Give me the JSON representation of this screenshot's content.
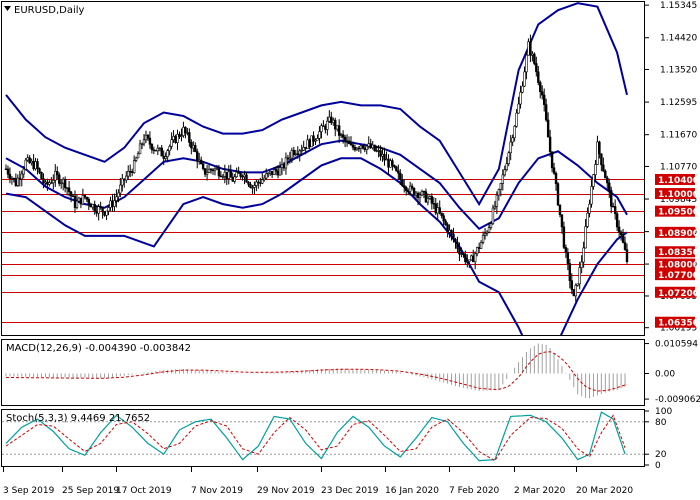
{
  "chart_data": [
    {
      "type": "candlestick",
      "title": "EURUSD,Daily",
      "price_axis": {
        "ylim": [
          1.05988,
          1.15434
        ],
        "tick_labels": [
          1.15345,
          1.1442,
          1.1352,
          1.12595,
          1.1167,
          1.1077,
          1.09845,
          1.0892,
          1.08,
          1.07095,
          1.06195
        ]
      },
      "horizontal_levels": [
        1.104,
        1.1,
        1.095,
        1.089,
        1.0835,
        1.08,
        1.077,
        1.072,
        1.0635
      ],
      "level_labels": [
        "1.10400",
        "1.10000",
        "1.09500",
        "1.08900",
        "1.08350",
        "1.08000",
        "1.07700",
        "1.07200",
        "1.06350"
      ],
      "x_tick_labels": [
        "3 Sep 2019",
        "25 Sep 2019",
        "17 Oct 2019",
        "7 Nov 2019",
        "29 Nov 2019",
        "23 Dec 2019",
        "16 Jan 2020",
        "7 Feb 2020",
        "2 Mar 2020",
        "20 Mar 2020"
      ],
      "close_path": [
        [
          0,
          1.1,
          1.107
        ],
        [
          5,
          1.103
        ],
        [
          10,
          1.109
        ],
        [
          15,
          1.108
        ],
        [
          20,
          1.102
        ],
        [
          25,
          1.105
        ],
        [
          30,
          1.103
        ],
        [
          35,
          1.097
        ],
        [
          40,
          1.099
        ],
        [
          45,
          1.096
        ],
        [
          50,
          1.095
        ],
        [
          55,
          1.098
        ],
        [
          60,
          1.104
        ],
        [
          65,
          1.108
        ],
        [
          70,
          1.116
        ],
        [
          75,
          1.113
        ],
        [
          80,
          1.111
        ],
        [
          85,
          1.115
        ],
        [
          90,
          1.118
        ],
        [
          95,
          1.113
        ],
        [
          100,
          1.106
        ],
        [
          105,
          1.107
        ],
        [
          110,
          1.106
        ],
        [
          115,
          1.104
        ],
        [
          120,
          1.106
        ],
        [
          125,
          1.102
        ],
        [
          130,
          1.104
        ],
        [
          135,
          1.106
        ],
        [
          140,
          1.107
        ],
        [
          145,
          1.112
        ],
        [
          150,
          1.113
        ],
        [
          155,
          1.115
        ],
        [
          160,
          1.118
        ],
        [
          165,
          1.121
        ],
        [
          170,
          1.116
        ],
        [
          175,
          1.113
        ],
        [
          180,
          1.114
        ],
        [
          185,
          1.113
        ],
        [
          190,
          1.111
        ],
        [
          195,
          1.108
        ],
        [
          200,
          1.104
        ],
        [
          205,
          1.101
        ],
        [
          210,
          1.1
        ],
        [
          215,
          1.098
        ],
        [
          220,
          1.094
        ],
        [
          225,
          1.089
        ],
        [
          230,
          1.084
        ],
        [
          235,
          1.08
        ],
        [
          240,
          1.085
        ],
        [
          245,
          1.091
        ],
        [
          250,
          1.1
        ],
        [
          255,
          1.112
        ],
        [
          260,
          1.125
        ],
        [
          265,
          1.142
        ],
        [
          268,
          1.137
        ],
        [
          272,
          1.128
        ],
        [
          276,
          1.112
        ],
        [
          280,
          1.098
        ],
        [
          284,
          1.082
        ],
        [
          288,
          1.07
        ],
        [
          292,
          1.081
        ],
        [
          296,
          1.098
        ],
        [
          300,
          1.1135
        ],
        [
          304,
          1.105
        ],
        [
          308,
          1.095
        ],
        [
          312,
          1.088
        ],
        [
          315,
          1.081
        ]
      ],
      "bollinger": {
        "upper": [
          [
            0,
            1.128
          ],
          [
            10,
            1.121
          ],
          [
            20,
            1.116
          ],
          [
            30,
            1.113
          ],
          [
            40,
            1.111
          ],
          [
            50,
            1.109
          ],
          [
            60,
            1.113
          ],
          [
            70,
            1.12
          ],
          [
            80,
            1.123
          ],
          [
            90,
            1.122
          ],
          [
            100,
            1.119
          ],
          [
            110,
            1.117
          ],
          [
            120,
            1.117
          ],
          [
            130,
            1.118
          ],
          [
            140,
            1.121
          ],
          [
            150,
            1.123
          ],
          [
            160,
            1.125
          ],
          [
            170,
            1.126
          ],
          [
            180,
            1.125
          ],
          [
            190,
            1.125
          ],
          [
            200,
            1.124
          ],
          [
            210,
            1.119
          ],
          [
            220,
            1.115
          ],
          [
            230,
            1.106
          ],
          [
            240,
            1.097
          ],
          [
            250,
            1.107
          ],
          [
            260,
            1.135
          ],
          [
            270,
            1.148
          ],
          [
            280,
            1.152
          ],
          [
            290,
            1.154
          ],
          [
            300,
            1.153
          ],
          [
            310,
            1.14
          ],
          [
            315,
            1.128
          ]
        ],
        "middle": [
          [
            0,
            1.11
          ],
          [
            10,
            1.107
          ],
          [
            20,
            1.102
          ],
          [
            30,
            1.099
          ],
          [
            40,
            1.097
          ],
          [
            50,
            1.096
          ],
          [
            60,
            1.099
          ],
          [
            70,
            1.104
          ],
          [
            80,
            1.109
          ],
          [
            90,
            1.11
          ],
          [
            100,
            1.109
          ],
          [
            110,
            1.107
          ],
          [
            120,
            1.106
          ],
          [
            130,
            1.106
          ],
          [
            140,
            1.108
          ],
          [
            150,
            1.111
          ],
          [
            160,
            1.114
          ],
          [
            170,
            1.115
          ],
          [
            180,
            1.114
          ],
          [
            190,
            1.113
          ],
          [
            200,
            1.111
          ],
          [
            210,
            1.107
          ],
          [
            220,
            1.103
          ],
          [
            230,
            1.096
          ],
          [
            240,
            1.09
          ],
          [
            250,
            1.093
          ],
          [
            260,
            1.103
          ],
          [
            270,
            1.11
          ],
          [
            280,
            1.112
          ],
          [
            290,
            1.108
          ],
          [
            300,
            1.103
          ],
          [
            310,
            1.099
          ],
          [
            315,
            1.094
          ]
        ],
        "lower": [
          [
            0,
            1.1
          ],
          [
            10,
            1.099
          ],
          [
            20,
            1.095
          ],
          [
            30,
            1.091
          ],
          [
            40,
            1.088
          ],
          [
            50,
            1.088
          ],
          [
            60,
            1.088
          ],
          [
            70,
            1.086
          ],
          [
            75,
            1.085
          ],
          [
            80,
            1.089
          ],
          [
            90,
            1.097
          ],
          [
            100,
            1.099
          ],
          [
            110,
            1.097
          ],
          [
            120,
            1.096
          ],
          [
            130,
            1.097
          ],
          [
            140,
            1.1
          ],
          [
            150,
            1.104
          ],
          [
            160,
            1.108
          ],
          [
            170,
            1.11
          ],
          [
            180,
            1.11
          ],
          [
            190,
            1.107
          ],
          [
            200,
            1.103
          ],
          [
            210,
            1.097
          ],
          [
            220,
            1.092
          ],
          [
            230,
            1.085
          ],
          [
            240,
            1.075
          ],
          [
            250,
            1.072
          ],
          [
            260,
            1.062
          ],
          [
            270,
            1.05
          ],
          [
            280,
            1.058
          ],
          [
            290,
            1.07
          ],
          [
            300,
            1.08
          ],
          [
            310,
            1.087
          ],
          [
            315,
            1.089
          ]
        ]
      }
    },
    {
      "type": "histogram",
      "title": "MACD(12,26,9) -0.004390 -0.003842",
      "ylim": [
        -0.0108,
        0.0115
      ],
      "tick_labels": [
        0.010594,
        0.0,
        -0.009062
      ],
      "histogram": [
        [
          0,
          -0.001
        ],
        [
          30,
          -0.0014
        ],
        [
          50,
          -0.0016
        ],
        [
          60,
          -0.0008
        ],
        [
          70,
          0.0003
        ],
        [
          80,
          0.0012
        ],
        [
          90,
          0.0016
        ],
        [
          100,
          0.0012
        ],
        [
          110,
          0.0005
        ],
        [
          120,
          0.0
        ],
        [
          130,
          0.0002
        ],
        [
          140,
          0.0005
        ],
        [
          150,
          0.001
        ],
        [
          160,
          0.0016
        ],
        [
          170,
          0.0018
        ],
        [
          180,
          0.0014
        ],
        [
          190,
          0.0012
        ],
        [
          200,
          0.0004
        ],
        [
          210,
          -0.001
        ],
        [
          220,
          -0.0028
        ],
        [
          230,
          -0.0048
        ],
        [
          240,
          -0.0062
        ],
        [
          250,
          -0.0058
        ],
        [
          255,
          -0.001
        ],
        [
          260,
          0.004
        ],
        [
          265,
          0.0085
        ],
        [
          270,
          0.0106
        ],
        [
          275,
          0.01
        ],
        [
          280,
          0.005
        ],
        [
          285,
          -0.001
        ],
        [
          290,
          -0.0074
        ],
        [
          295,
          -0.009
        ],
        [
          300,
          -0.0078
        ],
        [
          305,
          -0.0065
        ],
        [
          310,
          -0.0058
        ],
        [
          315,
          -0.0044
        ]
      ],
      "signal": [
        [
          0,
          -0.0014
        ],
        [
          30,
          -0.0016
        ],
        [
          50,
          -0.0017
        ],
        [
          60,
          -0.0013
        ],
        [
          70,
          -0.0005
        ],
        [
          80,
          0.0006
        ],
        [
          90,
          0.0012
        ],
        [
          100,
          0.0012
        ],
        [
          110,
          0.0009
        ],
        [
          120,
          0.0005
        ],
        [
          130,
          0.0004
        ],
        [
          140,
          0.0005
        ],
        [
          150,
          0.0008
        ],
        [
          160,
          0.0012
        ],
        [
          170,
          0.0015
        ],
        [
          180,
          0.0015
        ],
        [
          190,
          0.0013
        ],
        [
          200,
          0.0008
        ],
        [
          210,
          -0.0002
        ],
        [
          220,
          -0.0016
        ],
        [
          230,
          -0.0034
        ],
        [
          240,
          -0.0052
        ],
        [
          250,
          -0.0058
        ],
        [
          255,
          -0.0045
        ],
        [
          260,
          -0.0015
        ],
        [
          265,
          0.0035
        ],
        [
          270,
          0.0068
        ],
        [
          275,
          0.008
        ],
        [
          280,
          0.0065
        ],
        [
          285,
          0.003
        ],
        [
          290,
          -0.002
        ],
        [
          295,
          -0.0052
        ],
        [
          300,
          -0.0062
        ],
        [
          305,
          -0.006
        ],
        [
          310,
          -0.005
        ],
        [
          315,
          -0.0038
        ]
      ]
    },
    {
      "type": "line",
      "title": "Stoch(5,3,3) 9.4469 21.7652",
      "ylim": [
        0,
        100
      ],
      "tick_labels": [
        100,
        80,
        20,
        0
      ],
      "k_line": [
        [
          0,
          40
        ],
        [
          8,
          70
        ],
        [
          16,
          85
        ],
        [
          24,
          62
        ],
        [
          32,
          30
        ],
        [
          40,
          18
        ],
        [
          48,
          60
        ],
        [
          56,
          92
        ],
        [
          64,
          70
        ],
        [
          72,
          40
        ],
        [
          80,
          20
        ],
        [
          88,
          65
        ],
        [
          96,
          80
        ],
        [
          104,
          85
        ],
        [
          112,
          50
        ],
        [
          120,
          10
        ],
        [
          128,
          35
        ],
        [
          136,
          90
        ],
        [
          144,
          85
        ],
        [
          152,
          40
        ],
        [
          160,
          12
        ],
        [
          168,
          60
        ],
        [
          176,
          90
        ],
        [
          184,
          70
        ],
        [
          192,
          35
        ],
        [
          200,
          15
        ],
        [
          208,
          50
        ],
        [
          216,
          88
        ],
        [
          224,
          80
        ],
        [
          232,
          40
        ],
        [
          240,
          8
        ],
        [
          248,
          10
        ],
        [
          256,
          90
        ],
        [
          266,
          92
        ],
        [
          274,
          80
        ],
        [
          282,
          50
        ],
        [
          290,
          10
        ],
        [
          296,
          20
        ],
        [
          302,
          98
        ],
        [
          308,
          85
        ],
        [
          315,
          9.4469
        ]
      ],
      "d_line": [
        [
          0,
          35
        ],
        [
          8,
          55
        ],
        [
          16,
          75
        ],
        [
          24,
          72
        ],
        [
          32,
          48
        ],
        [
          40,
          25
        ],
        [
          48,
          40
        ],
        [
          56,
          75
        ],
        [
          64,
          80
        ],
        [
          72,
          58
        ],
        [
          80,
          30
        ],
        [
          88,
          40
        ],
        [
          96,
          72
        ],
        [
          104,
          82
        ],
        [
          112,
          72
        ],
        [
          120,
          30
        ],
        [
          128,
          20
        ],
        [
          136,
          60
        ],
        [
          144,
          88
        ],
        [
          152,
          65
        ],
        [
          160,
          28
        ],
        [
          168,
          35
        ],
        [
          176,
          75
        ],
        [
          184,
          82
        ],
        [
          192,
          55
        ],
        [
          200,
          25
        ],
        [
          208,
          30
        ],
        [
          216,
          70
        ],
        [
          224,
          85
        ],
        [
          232,
          60
        ],
        [
          240,
          25
        ],
        [
          248,
          8
        ],
        [
          256,
          55
        ],
        [
          266,
          88
        ],
        [
          274,
          86
        ],
        [
          282,
          68
        ],
        [
          290,
          30
        ],
        [
          296,
          15
        ],
        [
          302,
          60
        ],
        [
          308,
          92
        ],
        [
          315,
          21.7652
        ]
      ],
      "reference_levels": [
        80,
        20
      ]
    }
  ],
  "colors": {
    "bollinger": "#00009b",
    "level_line": "#cc0000",
    "level_tag": "#d00000",
    "macd_signal": "#d60000",
    "macd_hist": "#a0a0a0",
    "stoch_k": "#00a0a0",
    "stoch_d": "#d60000",
    "candle": "#000000",
    "grid_ref": "#999999"
  }
}
